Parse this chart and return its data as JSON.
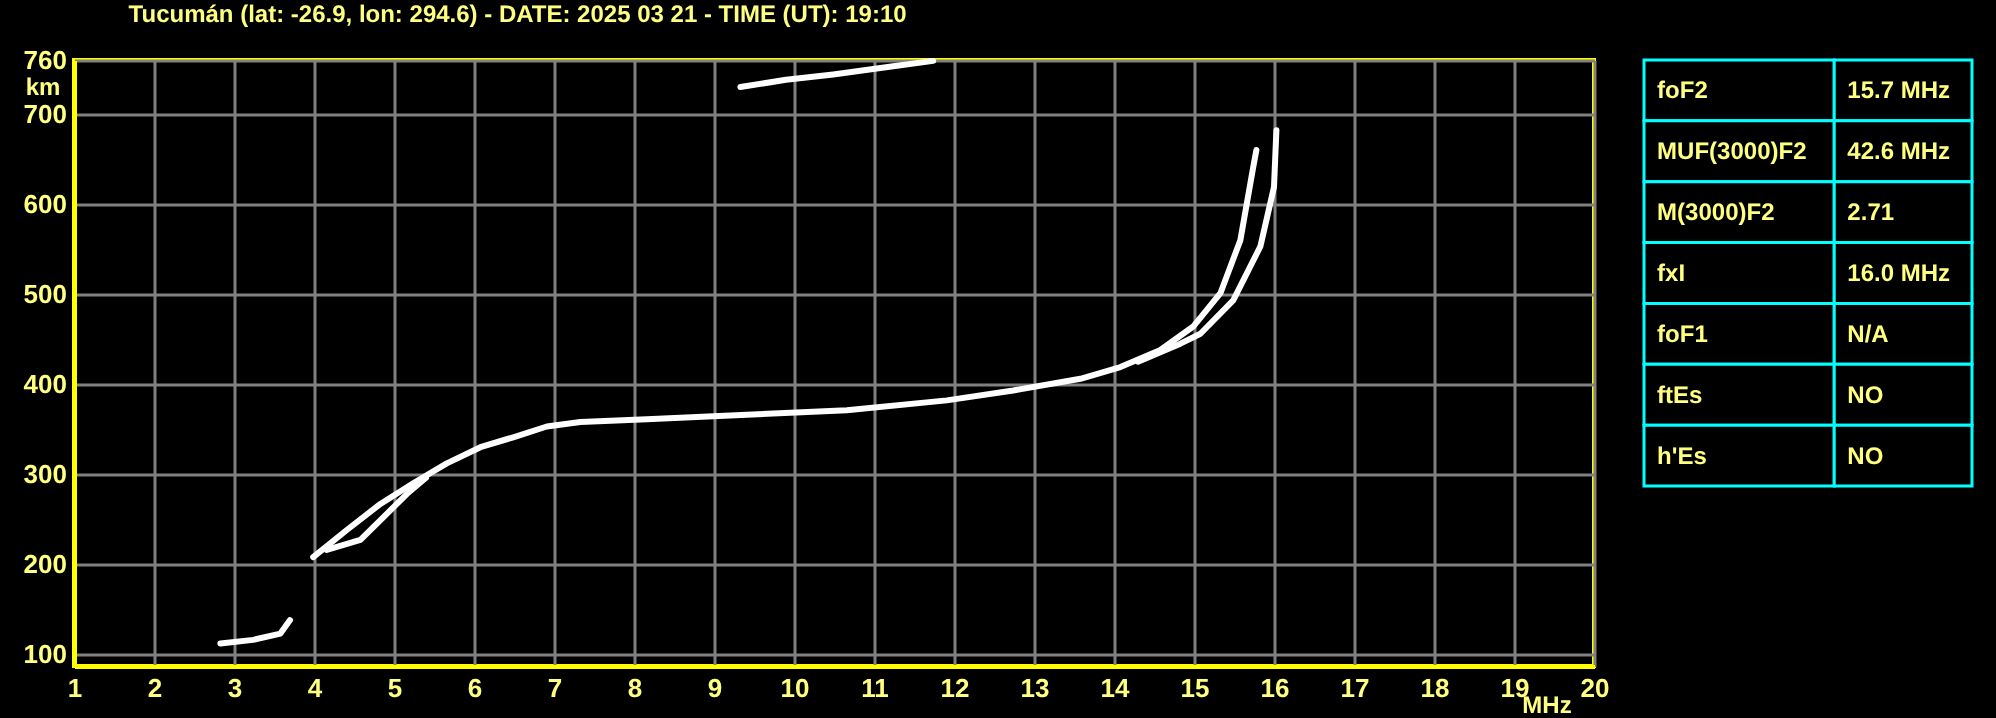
{
  "chart_data": [
    {
      "type": "line",
      "title": "Tucumán (lat: -26.9, lon: 294.6) - DATE: 2025 03 21 - TIME (UT): 19:10",
      "xlabel": "MHz",
      "ylabel": "km",
      "xlim": [
        1,
        20
      ],
      "ylim": [
        87,
        760
      ],
      "xticks": [
        1,
        2,
        3,
        4,
        5,
        6,
        7,
        8,
        9,
        10,
        11,
        12,
        13,
        14,
        15,
        16,
        17,
        18,
        19,
        20
      ],
      "yticks": [
        100,
        200,
        300,
        400,
        500,
        600,
        700,
        760
      ],
      "grid": true,
      "line_style": "solid",
      "series": [
        {
          "color": "#ffffff",
          "x": [
            3.99,
            4.41,
            4.83,
            5.24,
            5.66,
            6.08,
            6.49,
            6.91,
            7.33,
            8.16,
            9.41,
            10.66,
            11.91,
            12.74,
            13.58,
            14.08,
            14.58,
            14.99,
            15.33,
            15.58,
            15.74,
            15.78
          ],
          "values": [
            208,
            238,
            267,
            290,
            312,
            330,
            341,
            353,
            358,
            361,
            366,
            371,
            382,
            393,
            406,
            419,
            438,
            464,
            501,
            560,
            641,
            660
          ]
        },
        {
          "color": "#ffffff",
          "x": [
            4.16,
            4.58,
            4.91,
            5.16,
            5.4
          ],
          "values": [
            216,
            227,
            256,
            278,
            296
          ]
        },
        {
          "color": "#ffffff",
          "x": [
            14.3,
            14.83,
            15.08,
            15.49,
            15.83,
            16.0,
            16.03
          ],
          "values": [
            425,
            445,
            456,
            493,
            553,
            619,
            682
          ]
        },
        {
          "color": "#ffffff",
          "x": [
            2.83,
            3.24,
            3.58,
            3.7
          ],
          "values": [
            112,
            116,
            123,
            138
          ]
        },
        {
          "color": "#ffffff",
          "x": [
            9.33,
            9.9,
            10.49,
            11.24,
            11.74
          ],
          "values": [
            730,
            738,
            744,
            753,
            759
          ]
        }
      ]
    },
    {
      "type": "other",
      "annotations": [
        "foF2",
        "15.7 MHz",
        "MUF(3000)F2",
        "42.6 MHz",
        "M(3000)F2",
        "2.71",
        "fxI",
        "16.0 MHz",
        "foF1",
        "N/A",
        "ftEs",
        "NO",
        "h'Es",
        "NO"
      ]
    }
  ]
}
